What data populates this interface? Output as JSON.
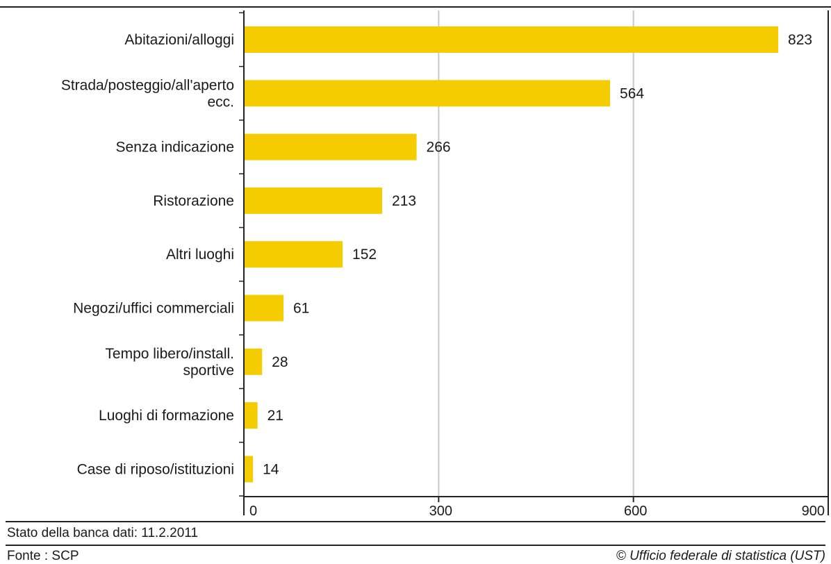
{
  "chart_data": {
    "type": "bar",
    "orientation": "horizontal",
    "title": "",
    "categories": [
      [
        "Abitazioni/alloggi"
      ],
      [
        "Strada/posteggio/all'aperto",
        "ecc."
      ],
      [
        "Senza indicazione"
      ],
      [
        "Ristorazione"
      ],
      [
        "Altri luoghi"
      ],
      [
        "Negozi/uffici commerciali"
      ],
      [
        "Tempo libero/install.",
        "sportive"
      ],
      [
        "Luoghi di formazione"
      ],
      [
        "Case di riposo/istituzioni"
      ]
    ],
    "values": [
      823,
      564,
      266,
      213,
      152,
      61,
      28,
      21,
      14
    ],
    "xlim": [
      0,
      900
    ],
    "xticks": [
      0,
      300,
      600,
      900
    ],
    "grid": true,
    "bar_color": "#f5cc00",
    "grid_color": "#c8c8c8",
    "axis_color": "#222222"
  },
  "footer": {
    "database_state": "Stato della banca dati: 11.2.2011",
    "source": "Fonte : SCP",
    "copyright": "© Ufficio federale di statistica (UST)"
  }
}
